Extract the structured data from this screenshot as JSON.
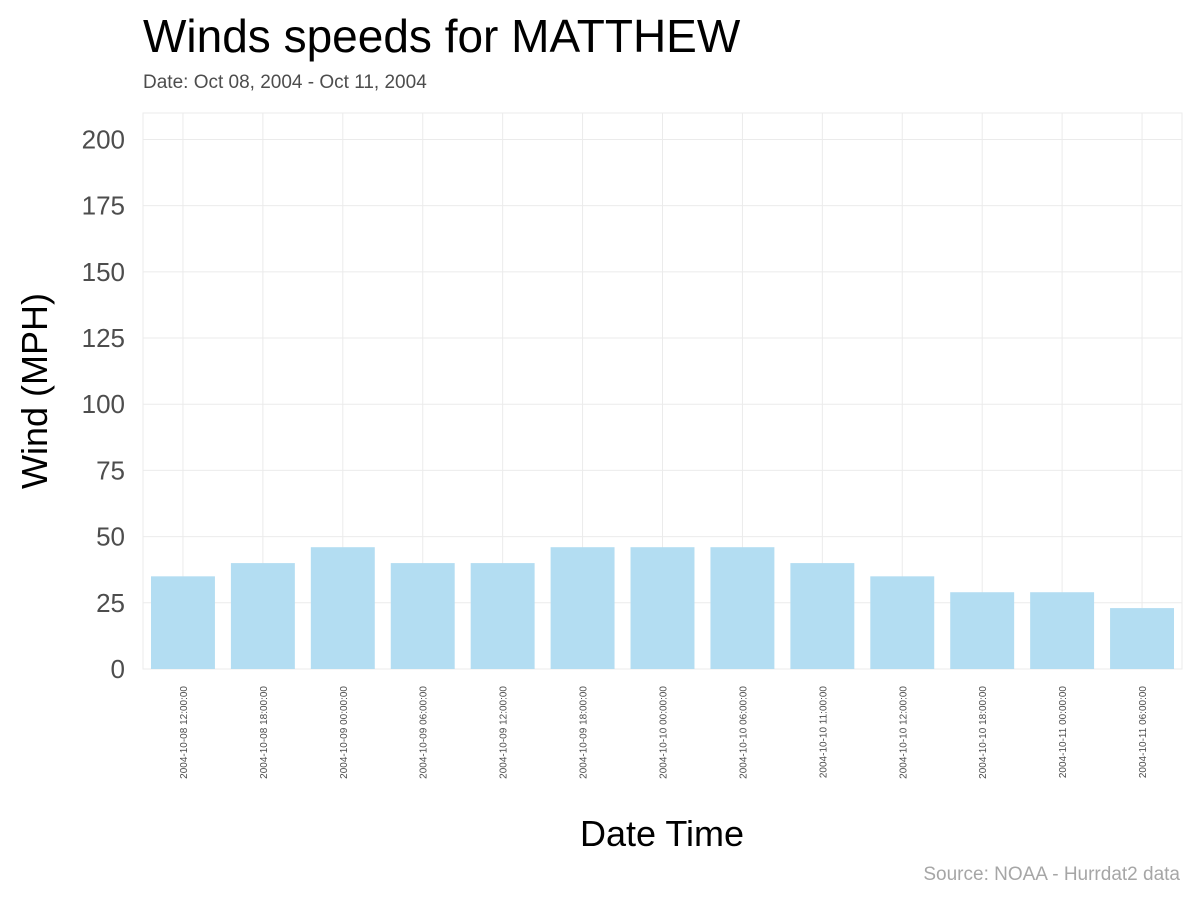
{
  "chart_data": {
    "type": "bar",
    "title": "Winds speeds for MATTHEW",
    "subtitle": "Date:  Oct 08, 2004 - Oct 11, 2004",
    "xlabel": "Date Time",
    "ylabel": "Wind (MPH)",
    "caption": "Source: NOAA - Hurrdat2 data",
    "ylim": [
      0,
      210
    ],
    "yticks": [
      0,
      25,
      50,
      75,
      100,
      125,
      150,
      175,
      200
    ],
    "grid": true,
    "bar_color": "#b3ddf2",
    "categories": [
      "2004-10-08 12:00:00",
      "2004-10-08 18:00:00",
      "2004-10-09 00:00:00",
      "2004-10-09 06:00:00",
      "2004-10-09 12:00:00",
      "2004-10-09 18:00:00",
      "2004-10-10 00:00:00",
      "2004-10-10 06:00:00",
      "2004-10-10 11:00:00",
      "2004-10-10 12:00:00",
      "2004-10-10 18:00:00",
      "2004-10-11 00:00:00",
      "2004-10-11 06:00:00"
    ],
    "values": [
      35,
      40,
      46,
      40,
      40,
      46,
      46,
      46,
      40,
      35,
      29,
      29,
      23
    ]
  }
}
